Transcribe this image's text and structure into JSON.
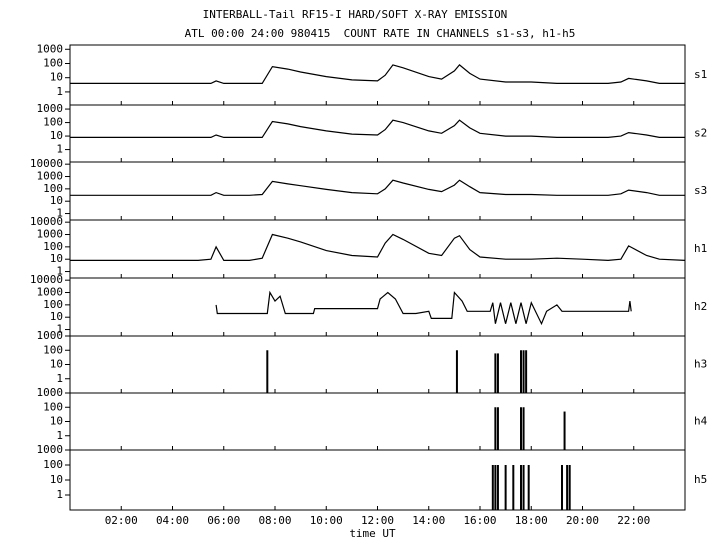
{
  "chart_data": [
    {
      "type": "line",
      "title": "INTERBALL-Tail RF15-I HARD/SOFT X-RAY EMISSION",
      "subtitle": "ATL 00:00 24:00 980415  COUNT RATE IN CHANNELS s1-s3, h1-h5",
      "log": true,
      "xlim": [
        0,
        24
      ],
      "ylim": [
        0.12,
        2000
      ],
      "yticks": [
        1,
        10,
        100,
        1000
      ],
      "color": "#000000",
      "x": [
        0,
        1,
        2,
        3,
        4,
        5,
        5.5,
        5.7,
        6,
        7,
        7.5,
        7.9,
        8.5,
        9,
        10,
        11,
        12,
        12.3,
        12.6,
        13,
        14,
        14.5,
        15,
        15.2,
        15.6,
        16,
        17,
        18,
        19,
        20,
        21,
        21.5,
        21.8,
        22.5,
        23,
        24
      ],
      "series": [
        {
          "name": "s1",
          "values": [
            4,
            4,
            4,
            4,
            4,
            4,
            4,
            6,
            4,
            4,
            4,
            60,
            40,
            25,
            12,
            7,
            6,
            15,
            80,
            50,
            12,
            8,
            30,
            80,
            20,
            8,
            5,
            5,
            4,
            4,
            4,
            5,
            9,
            6,
            4,
            4
          ]
        }
      ]
    },
    {
      "type": "line",
      "log": true,
      "xlim": [
        0,
        24
      ],
      "ylim": [
        0.12,
        2000
      ],
      "yticks": [
        1,
        10,
        100,
        1000
      ],
      "color": "#000000",
      "x": [
        0,
        1,
        2,
        3,
        4,
        5,
        5.5,
        5.7,
        6,
        7,
        7.5,
        7.9,
        8.5,
        9,
        10,
        11,
        12,
        12.3,
        12.6,
        13,
        14,
        14.5,
        15,
        15.2,
        15.6,
        16,
        17,
        18,
        19,
        20,
        21,
        21.5,
        21.8,
        22.5,
        23,
        24
      ],
      "series": [
        {
          "name": "s2",
          "values": [
            8,
            8,
            8,
            8,
            8,
            8,
            8,
            12,
            8,
            8,
            8,
            120,
            80,
            50,
            24,
            14,
            12,
            30,
            150,
            100,
            24,
            16,
            60,
            150,
            40,
            16,
            10,
            10,
            8,
            8,
            8,
            10,
            18,
            12,
            8,
            8
          ]
        }
      ]
    },
    {
      "type": "line",
      "log": true,
      "xlim": [
        0,
        24
      ],
      "ylim": [
        0.3,
        15000
      ],
      "yticks": [
        1,
        10,
        100,
        1000,
        10000
      ],
      "color": "#000000",
      "x": [
        0,
        1,
        2,
        3,
        4,
        5,
        5.5,
        5.7,
        6,
        7,
        7.5,
        7.9,
        8.5,
        9,
        10,
        11,
        12,
        12.3,
        12.6,
        13,
        14,
        14.5,
        15,
        15.2,
        15.6,
        16,
        17,
        18,
        19,
        20,
        21,
        21.5,
        21.8,
        22.5,
        23,
        24
      ],
      "series": [
        {
          "name": "s3",
          "values": [
            30,
            30,
            30,
            30,
            30,
            30,
            30,
            50,
            30,
            30,
            35,
            400,
            250,
            180,
            90,
            50,
            40,
            100,
            500,
            300,
            90,
            60,
            200,
            500,
            150,
            50,
            35,
            35,
            30,
            30,
            30,
            40,
            80,
            50,
            30,
            30
          ]
        }
      ]
    },
    {
      "type": "line",
      "log": true,
      "xlim": [
        0,
        24
      ],
      "ylim": [
        0.3,
        15000
      ],
      "yticks": [
        1,
        10,
        100,
        1000,
        10000
      ],
      "color": "#000000",
      "x": [
        0,
        1,
        2,
        3,
        4,
        5,
        5.5,
        5.7,
        6,
        7,
        7.5,
        7.9,
        8.5,
        9,
        10,
        11,
        12,
        12.3,
        12.6,
        13,
        14,
        14.5,
        15,
        15.2,
        15.6,
        16,
        17,
        18,
        19,
        20,
        21,
        21.5,
        21.8,
        22.5,
        23,
        24
      ],
      "series": [
        {
          "name": "h1",
          "values": [
            8,
            8,
            8,
            8,
            8,
            8,
            10,
            100,
            8,
            8,
            12,
            1000,
            500,
            250,
            50,
            20,
            15,
            200,
            1000,
            400,
            30,
            20,
            500,
            800,
            60,
            15,
            10,
            10,
            12,
            10,
            8,
            10,
            120,
            20,
            10,
            8
          ]
        }
      ]
    },
    {
      "type": "line",
      "log": true,
      "xlim": [
        0,
        24
      ],
      "ylim": [
        0.3,
        15000
      ],
      "yticks": [
        1,
        10,
        100,
        1000,
        10000
      ],
      "color": "#000000",
      "x": [
        5.7,
        5.75,
        7.7,
        7.8,
        8.0,
        8.2,
        8.4,
        9.5,
        9.55,
        12.0,
        12.1,
        12.4,
        12.7,
        13.0,
        13.5,
        14.0,
        14.1,
        14.9,
        15.0,
        15.3,
        15.5,
        16.4,
        16.5,
        16.6,
        16.8,
        17.0,
        17.2,
        17.4,
        17.6,
        17.8,
        18.0,
        18.4,
        18.6,
        19.0,
        19.2,
        21.8,
        21.85,
        21.9
      ],
      "series": [
        {
          "name": "h2",
          "values": [
            100,
            20,
            20,
            1000,
            200,
            500,
            20,
            20,
            50,
            50,
            300,
            1000,
            300,
            20,
            20,
            30,
            8,
            8,
            1000,
            200,
            30,
            30,
            150,
            3,
            150,
            3,
            150,
            3,
            150,
            3,
            150,
            3,
            30,
            100,
            30,
            30,
            200,
            30
          ]
        }
      ]
    },
    {
      "type": "spike",
      "log": true,
      "xlim": [
        0,
        24
      ],
      "ylim": [
        0.1,
        1000
      ],
      "yticks": [
        1,
        10,
        100,
        1000
      ],
      "color": "#000000",
      "x": [
        7.7,
        15.1,
        16.6,
        16.7,
        17.6,
        17.7,
        17.8
      ],
      "series": [
        {
          "name": "h3",
          "values": [
            100,
            100,
            60,
            60,
            100,
            100,
            100
          ]
        }
      ]
    },
    {
      "type": "spike",
      "log": true,
      "xlim": [
        0,
        24
      ],
      "ylim": [
        0.1,
        1000
      ],
      "yticks": [
        1,
        10,
        100,
        1000
      ],
      "color": "#000000",
      "x": [
        16.6,
        16.7,
        17.6,
        17.7,
        19.3
      ],
      "series": [
        {
          "name": "h4",
          "values": [
            100,
            100,
            100,
            100,
            50
          ]
        }
      ]
    },
    {
      "type": "spike",
      "log": true,
      "xlim": [
        0,
        24
      ],
      "ylim": [
        0.1,
        1000
      ],
      "yticks": [
        1,
        10,
        100,
        1000
      ],
      "color": "#000000",
      "xlabel": "time UT",
      "xticks": [
        {
          "value": 2,
          "label": "02:00"
        },
        {
          "value": 4,
          "label": "04:00"
        },
        {
          "value": 6,
          "label": "06:00"
        },
        {
          "value": 8,
          "label": "08:00"
        },
        {
          "value": 10,
          "label": "10:00"
        },
        {
          "value": 12,
          "label": "12:00"
        },
        {
          "value": 14,
          "label": "14:00"
        },
        {
          "value": 16,
          "label": "16:00"
        },
        {
          "value": 18,
          "label": "18:00"
        },
        {
          "value": 20,
          "label": "20:00"
        },
        {
          "value": 22,
          "label": "22:00"
        }
      ],
      "x": [
        16.5,
        16.6,
        16.7,
        17.0,
        17.3,
        17.6,
        17.7,
        17.9,
        19.2,
        19.4,
        19.5
      ],
      "series": [
        {
          "name": "h5",
          "values": [
            100,
            100,
            100,
            100,
            100,
            100,
            100,
            100,
            100,
            100,
            100
          ]
        }
      ]
    }
  ]
}
